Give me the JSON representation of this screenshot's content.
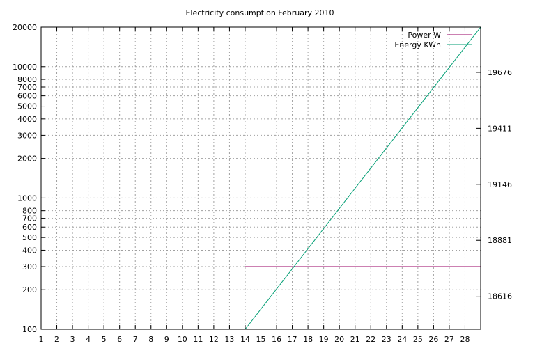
{
  "chart_data": {
    "type": "line",
    "title": "Electricity consumption February 2010",
    "xlabel": "",
    "ylabel": "",
    "y2label": "",
    "grid": true,
    "legend_position": "top-right",
    "x_range": [
      1,
      29
    ],
    "x_ticks": [
      "1",
      "2",
      "3",
      "4",
      "5",
      "6",
      "7",
      "8",
      "9",
      "10",
      "11",
      "12",
      "13",
      "14",
      "15",
      "16",
      "17",
      "18",
      "19",
      "20",
      "21",
      "22",
      "23",
      "24",
      "25",
      "26",
      "27",
      "28"
    ],
    "y_scale": "log",
    "y_range": [
      100,
      20000
    ],
    "y_ticks": [
      {
        "value": 100,
        "label": "100"
      },
      {
        "value": 200,
        "label": "200"
      },
      {
        "value": 300,
        "label": "300"
      },
      {
        "value": 400,
        "label": "400"
      },
      {
        "value": 500,
        "label": "500"
      },
      {
        "value": 600,
        "label": "600"
      },
      {
        "value": 700,
        "label": "700"
      },
      {
        "value": 800,
        "label": "800"
      },
      {
        "value": 1000,
        "label": "1000"
      },
      {
        "value": 2000,
        "label": "2000"
      },
      {
        "value": 3000,
        "label": "3000"
      },
      {
        "value": 4000,
        "label": "4000"
      },
      {
        "value": 5000,
        "label": "5000"
      },
      {
        "value": 6000,
        "label": "6000"
      },
      {
        "value": 7000,
        "label": "7000"
      },
      {
        "value": 8000,
        "label": "8000"
      },
      {
        "value": 10000,
        "label": "10000"
      },
      {
        "value": 20000,
        "label": "20000"
      }
    ],
    "y2_range": [
      18460,
      19890
    ],
    "y2_ticks": [
      {
        "value": 18616,
        "label": "18616"
      },
      {
        "value": 18881,
        "label": "18881"
      },
      {
        "value": 19146,
        "label": "19146"
      },
      {
        "value": 19411,
        "label": "19411"
      },
      {
        "value": 19676,
        "label": "19676"
      }
    ],
    "series": [
      {
        "name": "Power W",
        "color": "#990066",
        "axis": "y",
        "points": [
          [
            14,
            300
          ],
          [
            29,
            300
          ]
        ]
      },
      {
        "name": "Energy KWh",
        "color": "#009e73",
        "axis": "y",
        "points": [
          [
            14,
            100
          ],
          [
            29,
            20000
          ]
        ]
      }
    ]
  }
}
